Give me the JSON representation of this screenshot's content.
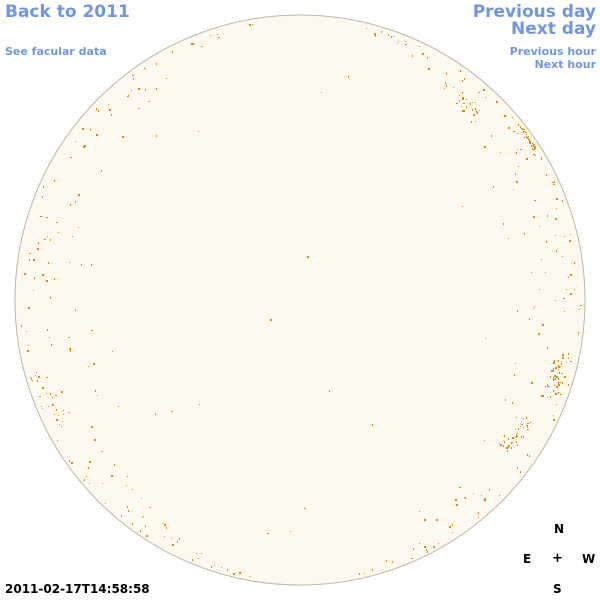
{
  "nav": {
    "back_label": "Back to 2011",
    "facular_label": "See facular data",
    "prev_day_label": "Previous day",
    "next_day_label": "Next day",
    "prev_hour_label": "Previous hour",
    "next_hour_label": "Next hour"
  },
  "compass": {
    "north": "N",
    "east": "E",
    "center": "+",
    "west": "W",
    "south": "S"
  },
  "timestamp": "2011-02-17T14:58:58",
  "colors": {
    "link": "#6e97e0",
    "disk_fill": "#fef9ee",
    "disk_border": "#bdb6aa",
    "feature": "#e38a0c"
  },
  "disk_features": {
    "name": "facular-points",
    "clusters": [
      {
        "region": "north-west-limb",
        "lat": 35,
        "lon": 80,
        "spread": 6,
        "count": 45
      },
      {
        "region": "north-west-inner",
        "lat": 45,
        "lon": 55,
        "spread": 7,
        "count": 20
      },
      {
        "region": "south-west-limb",
        "lat": -15,
        "lon": 70,
        "spread": 8,
        "count": 45
      },
      {
        "region": "south-west-lower",
        "lat": -28,
        "lon": 60,
        "spread": 6,
        "count": 35
      },
      {
        "region": "east-limb",
        "lat": -20,
        "lon": -75,
        "spread": 10,
        "count": 15
      }
    ],
    "limb_scatter_count": 420,
    "disk_scatter_count": 20
  }
}
